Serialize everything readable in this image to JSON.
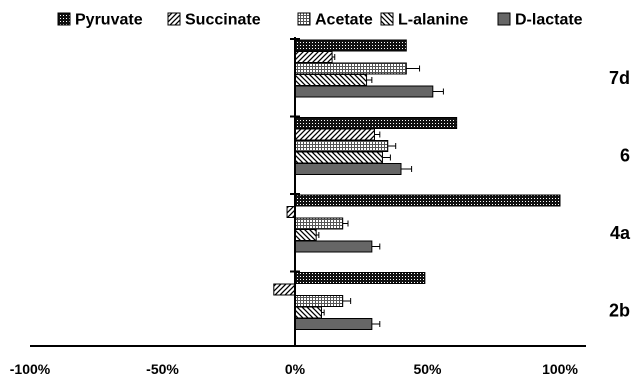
{
  "chart_data": {
    "type": "bar",
    "orientation": "horizontal",
    "categories": [
      "7d",
      "6",
      "4a",
      "2b"
    ],
    "xlim": [
      -100,
      100
    ],
    "xticks": [
      "-100%",
      "-50%",
      "0%",
      "50%",
      "100%"
    ],
    "xtick_values": [
      -100,
      -50,
      0,
      50,
      100
    ],
    "legend_position": "top",
    "series": [
      {
        "name": "Pyruvate",
        "pattern": "dots-dense",
        "values": [
          42,
          61,
          100,
          49
        ],
        "errors": [
          0,
          0,
          0,
          0
        ]
      },
      {
        "name": "Succinate",
        "pattern": "diag-fwd",
        "values": [
          14,
          30,
          -3,
          -8
        ],
        "errors": [
          1,
          2,
          0,
          0
        ]
      },
      {
        "name": "Acetate",
        "pattern": "grid",
        "values": [
          42,
          35,
          18,
          18
        ],
        "errors": [
          5,
          3,
          2,
          3
        ]
      },
      {
        "name": "L-alanine",
        "pattern": "diag-back",
        "values": [
          27,
          33,
          8,
          10
        ],
        "errors": [
          2,
          3,
          1,
          1
        ]
      },
      {
        "name": "D-lactate",
        "pattern": "solid-gray",
        "values": [
          52,
          40,
          29,
          29
        ],
        "errors": [
          4,
          4,
          3,
          3
        ]
      }
    ]
  }
}
